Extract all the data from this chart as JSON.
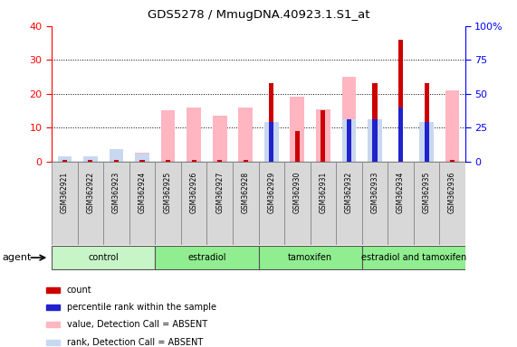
{
  "title": "GDS5278 / MmugDNA.40923.1.S1_at",
  "samples": [
    "GSM362921",
    "GSM362922",
    "GSM362923",
    "GSM362924",
    "GSM362925",
    "GSM362926",
    "GSM362927",
    "GSM362928",
    "GSM362929",
    "GSM362930",
    "GSM362931",
    "GSM362932",
    "GSM362933",
    "GSM362934",
    "GSM362935",
    "GSM362936"
  ],
  "group_labels": [
    "control",
    "estradiol",
    "tamoxifen",
    "estradiol and tamoxifen"
  ],
  "group_starts": [
    0,
    4,
    8,
    12
  ],
  "group_ends": [
    4,
    8,
    12,
    16
  ],
  "group_colors": [
    "#C8F5C8",
    "#90EE90",
    "#90EE90",
    "#90EE90"
  ],
  "count_values": [
    0.3,
    0.3,
    0.3,
    0.3,
    0.3,
    0.3,
    0.3,
    0.3,
    23,
    9,
    15,
    0.3,
    23,
    36,
    23,
    0.3
  ],
  "rank_values_pct": [
    0,
    0,
    0,
    0,
    0,
    0,
    0,
    0,
    29,
    0,
    0,
    31,
    31,
    40,
    29,
    0
  ],
  "pink_values": [
    1.5,
    1.5,
    0,
    2.5,
    15,
    16,
    13.5,
    16,
    11.5,
    19,
    15.5,
    25,
    0,
    0,
    0,
    21
  ],
  "lightblue_values_pct": [
    4,
    4,
    9,
    6,
    0,
    0,
    0,
    0,
    29,
    0,
    0,
    31,
    31,
    0,
    29,
    0
  ],
  "ylim_left": [
    0,
    40
  ],
  "ylim_right": [
    0,
    100
  ],
  "yticks_left": [
    0,
    10,
    20,
    30,
    40
  ],
  "yticks_right": [
    0,
    25,
    50,
    75,
    100
  ],
  "ytick_labels_right": [
    "0",
    "25",
    "50",
    "75",
    "100%"
  ],
  "color_count": "#CC0000",
  "color_rank": "#2222CC",
  "color_pink": "#FFB6C1",
  "color_lightblue": "#C8D8F0",
  "legend_labels": [
    "count",
    "percentile rank within the sample",
    "value, Detection Call = ABSENT",
    "rank, Detection Call = ABSENT"
  ]
}
